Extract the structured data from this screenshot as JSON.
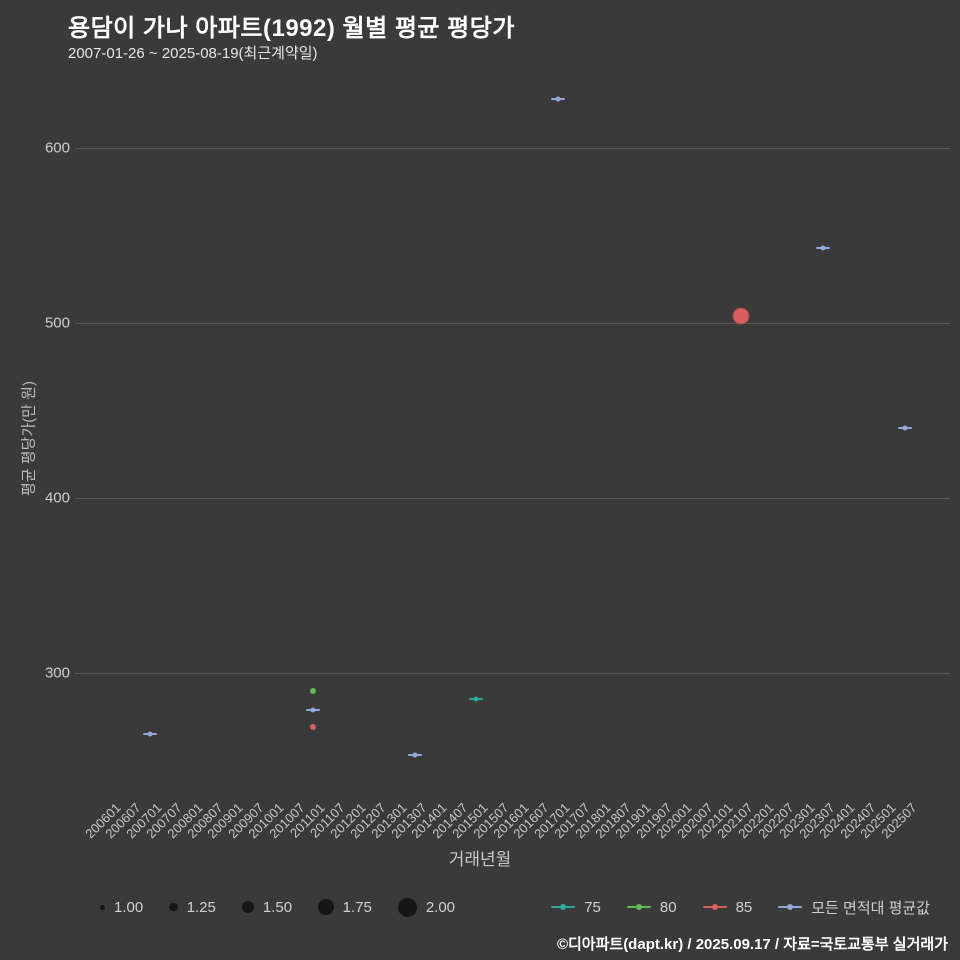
{
  "header": {
    "title": "용담이 가나 아파트(1992) 월별 평균 평당가",
    "subtitle": "2007-01-26 ~ 2025-08-19(최근계약일)"
  },
  "footer": {
    "credit": "©디아파트(dapt.kr) / 2025.09.17 / 자료=국토교통부 실거래가"
  },
  "colors": {
    "background": "#3a3a3a",
    "grid": "#585858",
    "size_legend_dot": "#161616",
    "series": {
      "s75": "#2fa79b",
      "s80": "#63b95c",
      "s85": "#d95f5f",
      "avg": "#93a9d6"
    }
  },
  "chart_data": {
    "type": "scatter",
    "title": "용담이 가나 아파트(1992) 월별 평균 평당가",
    "xlabel": "거래년월",
    "ylabel": "평균 평당가(만 원)",
    "ylim": [
      230,
      650
    ],
    "y_ticks": [
      300,
      400,
      500,
      600
    ],
    "x_ticks": [
      "200601",
      "200607",
      "200701",
      "200707",
      "200801",
      "200807",
      "200901",
      "200907",
      "201001",
      "201007",
      "201101",
      "201107",
      "201201",
      "201207",
      "201301",
      "201307",
      "201401",
      "201407",
      "201501",
      "201507",
      "201601",
      "201607",
      "201701",
      "201707",
      "201801",
      "201807",
      "201901",
      "201907",
      "202001",
      "202007",
      "202101",
      "202107",
      "202201",
      "202207",
      "202301",
      "202307",
      "202401",
      "202407",
      "202501",
      "202507"
    ],
    "grid": true,
    "legend_position": "bottom",
    "size_legend": [
      "1.00",
      "1.25",
      "1.50",
      "1.75",
      "2.00"
    ],
    "series_legend": [
      {
        "key": "s75",
        "label": "75"
      },
      {
        "key": "s80",
        "label": "80"
      },
      {
        "key": "s85",
        "label": "85"
      },
      {
        "key": "avg",
        "label": "모든 면적대 평균값"
      }
    ],
    "points": [
      {
        "month": "200701",
        "series": "avg",
        "value": 265,
        "marker": "dash",
        "size": 1.0
      },
      {
        "month": "201101",
        "series": "s80",
        "value": 290,
        "marker": "dot",
        "size": 1.0
      },
      {
        "month": "201101",
        "series": "avg",
        "value": 279,
        "marker": "dash",
        "size": 1.0
      },
      {
        "month": "201101",
        "series": "s85",
        "value": 269,
        "marker": "dot",
        "size": 1.0
      },
      {
        "month": "201307",
        "series": "avg",
        "value": 253,
        "marker": "dash",
        "size": 1.0
      },
      {
        "month": "201501",
        "series": "s75",
        "value": 285,
        "marker": "dash",
        "size": 1.0
      },
      {
        "month": "201701",
        "series": "avg",
        "value": 628,
        "marker": "dash",
        "size": 1.0
      },
      {
        "month": "202107",
        "series": "s85",
        "value": 504,
        "marker": "bigdot",
        "size": 2.0
      },
      {
        "month": "202307",
        "series": "avg",
        "value": 543,
        "marker": "dash",
        "size": 1.0
      },
      {
        "month": "202507",
        "series": "avg",
        "value": 440,
        "marker": "dash",
        "size": 1.0
      }
    ]
  }
}
